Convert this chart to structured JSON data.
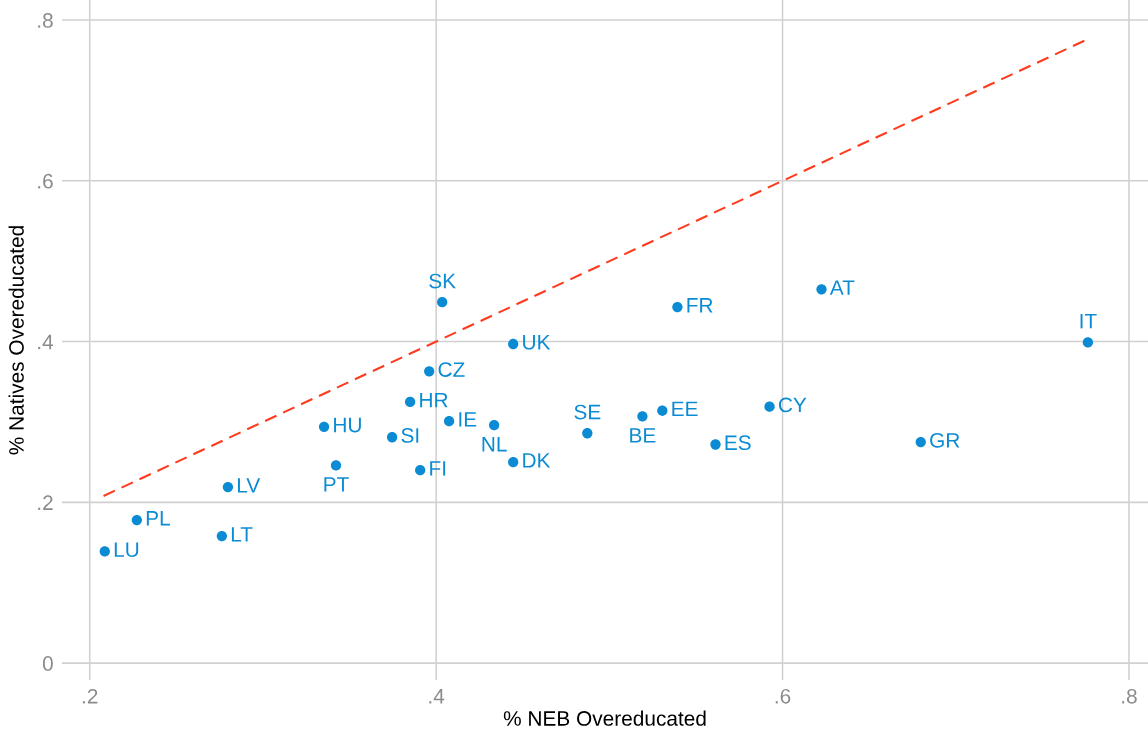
{
  "chart_data": {
    "type": "scatter",
    "xlabel": "% NEB Overeducated",
    "ylabel": "% Natives Overeducated",
    "xlim": [
      0.184,
      0.811
    ],
    "ylim": [
      -0.021,
      0.825
    ],
    "xticks": [
      {
        "value": 0.2,
        "label": ".2"
      },
      {
        "value": 0.4,
        "label": ".4"
      },
      {
        "value": 0.6,
        "label": ".6"
      },
      {
        "value": 0.8,
        "label": ".8"
      }
    ],
    "yticks": [
      0,
      {
        "value": 0.2,
        "label": ".2"
      },
      {
        "value": 0.4,
        "label": ".4"
      },
      {
        "value": 0.6,
        "label": ".6"
      },
      {
        "value": 0.8,
        "label": ".8"
      }
    ],
    "grid": true,
    "legend": false,
    "marker": "circle",
    "series": [
      {
        "color": "#0a8bd3",
        "x": [
          0.2087,
          0.2272,
          0.2763,
          0.2798,
          0.3353,
          0.3422,
          0.3746,
          0.385,
          0.3908,
          0.396,
          0.4035,
          0.4075,
          0.4335,
          0.4445,
          0.4445,
          0.4873,
          0.5191,
          0.5306,
          0.5393,
          0.5613,
          0.5925,
          0.6225,
          0.6798,
          0.7763
        ],
        "values": [
          0.139,
          0.178,
          0.158,
          0.219,
          0.294,
          0.246,
          0.281,
          0.325,
          0.24,
          0.363,
          0.449,
          0.301,
          0.296,
          0.397,
          0.25,
          0.286,
          0.307,
          0.314,
          0.443,
          0.272,
          0.319,
          0.465,
          0.275,
          0.399
        ]
      },
      {
        "type": "line",
        "color": "#ff3b1f",
        "line_style": "dashed",
        "marker": "none",
        "x": [
          0.208,
          0.775
        ],
        "values": [
          0.208,
          0.775
        ]
      }
    ],
    "annotations": [
      {
        "text": "LU",
        "x": 0.2087,
        "y": 0.139
      },
      {
        "text": "PL",
        "x": 0.2272,
        "y": 0.178
      },
      {
        "text": "LT",
        "x": 0.2763,
        "y": 0.158
      },
      {
        "text": "LV",
        "x": 0.2798,
        "y": 0.219
      },
      {
        "text": "HU",
        "x": 0.3353,
        "y": 0.294
      },
      {
        "text": "PT",
        "x": 0.3422,
        "y": 0.246
      },
      {
        "text": "SI",
        "x": 0.3746,
        "y": 0.281
      },
      {
        "text": "HR",
        "x": 0.385,
        "y": 0.325
      },
      {
        "text": "FI",
        "x": 0.3908,
        "y": 0.24
      },
      {
        "text": "CZ",
        "x": 0.396,
        "y": 0.363
      },
      {
        "text": "SK",
        "x": 0.4035,
        "y": 0.449
      },
      {
        "text": "IE",
        "x": 0.4075,
        "y": 0.301
      },
      {
        "text": "NL",
        "x": 0.4335,
        "y": 0.296
      },
      {
        "text": "UK",
        "x": 0.4445,
        "y": 0.397
      },
      {
        "text": "DK",
        "x": 0.4445,
        "y": 0.25
      },
      {
        "text": "SE",
        "x": 0.4873,
        "y": 0.286
      },
      {
        "text": "BE",
        "x": 0.5191,
        "y": 0.307
      },
      {
        "text": "EE",
        "x": 0.5306,
        "y": 0.314
      },
      {
        "text": "FR",
        "x": 0.5393,
        "y": 0.443
      },
      {
        "text": "ES",
        "x": 0.5613,
        "y": 0.272
      },
      {
        "text": "CY",
        "x": 0.5925,
        "y": 0.319
      },
      {
        "text": "AT",
        "x": 0.6225,
        "y": 0.465
      },
      {
        "text": "GR",
        "x": 0.6798,
        "y": 0.275
      },
      {
        "text": "IT",
        "x": 0.7763,
        "y": 0.399
      }
    ]
  }
}
